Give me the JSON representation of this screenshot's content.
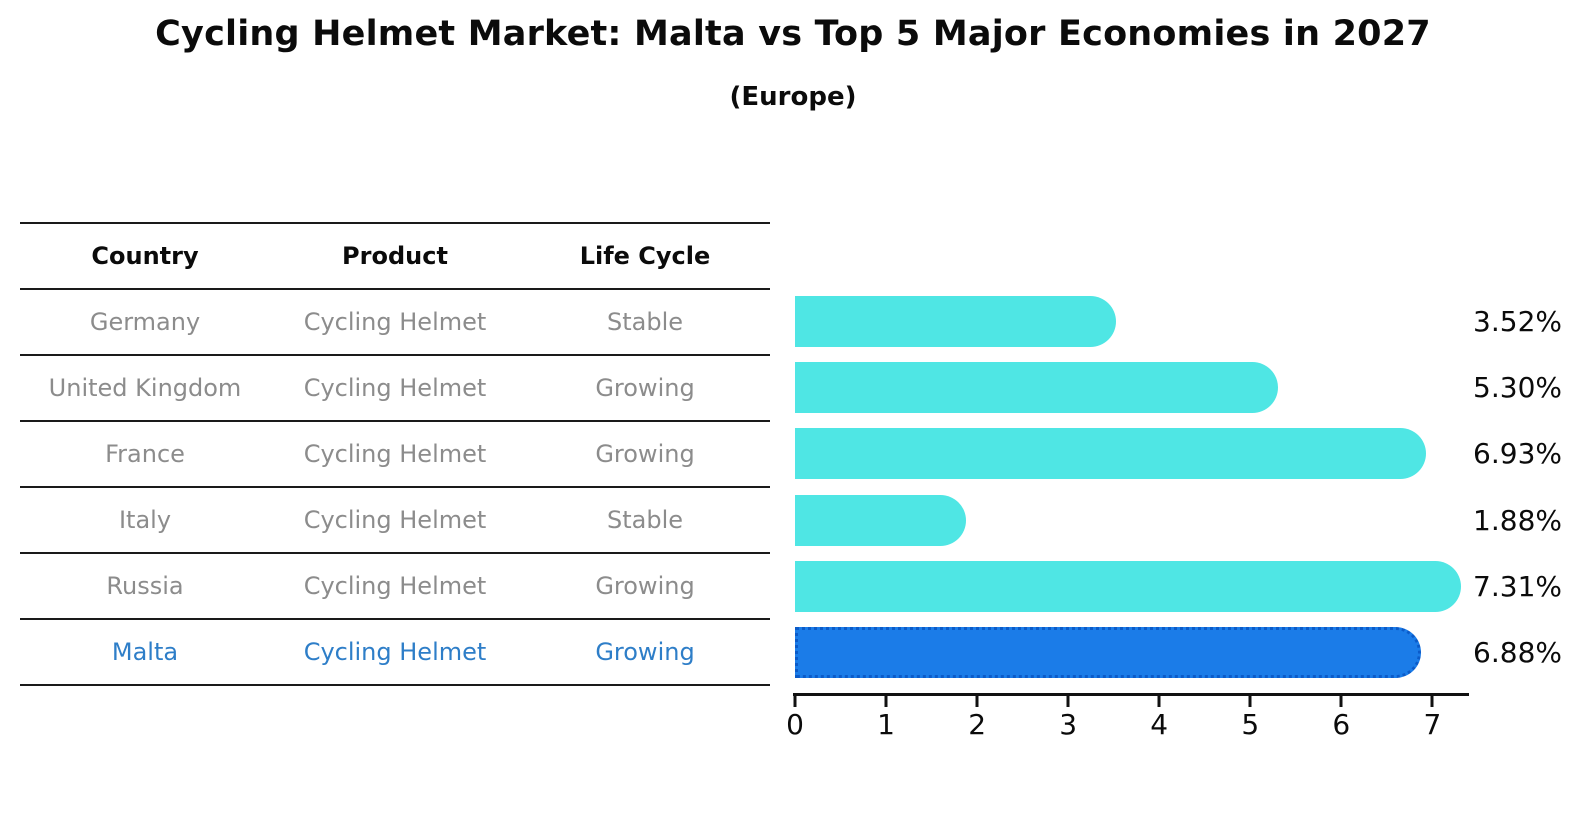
{
  "title": "Cycling Helmet Market: Malta vs Top 5 Major Economies in 2027",
  "subtitle": "(Europe)",
  "table": {
    "headers": [
      "Country",
      "Product",
      "Life Cycle"
    ],
    "rows": [
      {
        "country": "Germany",
        "product": "Cycling Helmet",
        "life_cycle": "Stable",
        "highlight": false
      },
      {
        "country": "United Kingdom",
        "product": "Cycling Helmet",
        "life_cycle": "Growing",
        "highlight": false
      },
      {
        "country": "France",
        "product": "Cycling Helmet",
        "life_cycle": "Growing",
        "highlight": false
      },
      {
        "country": "Italy",
        "product": "Cycling Helmet",
        "life_cycle": "Stable",
        "highlight": false
      },
      {
        "country": "Russia",
        "product": "Cycling Helmet",
        "life_cycle": "Growing",
        "highlight": false
      },
      {
        "country": "Malta",
        "product": "Cycling Helmet",
        "life_cycle": "Growing",
        "highlight": true
      }
    ]
  },
  "chart_data": {
    "type": "bar",
    "orientation": "horizontal",
    "title": "Cycling Helmet Market: Malta vs Top 5 Major Economies in 2027 (Europe)",
    "categories": [
      "Germany",
      "United Kingdom",
      "France",
      "Italy",
      "Russia",
      "Malta"
    ],
    "values": [
      3.52,
      5.3,
      6.93,
      1.88,
      7.31,
      6.88
    ],
    "value_labels": [
      "3.52%",
      "5.30%",
      "6.93%",
      "1.88%",
      "7.31%",
      "6.88%"
    ],
    "x_ticks": [
      0,
      1,
      2,
      3,
      4,
      5,
      6,
      7
    ],
    "xlim": [
      0,
      7.38
    ],
    "grid": false,
    "legend": "none",
    "bar_color": "#4FE6E4",
    "highlight_index": 5,
    "highlight_color": "#1B7CE8",
    "highlight_border_color": "#0B5BC9",
    "highlight_text_color": "#2E7EC8",
    "muted_text_color": "#8C8C8C",
    "axis_color": "#111111"
  }
}
